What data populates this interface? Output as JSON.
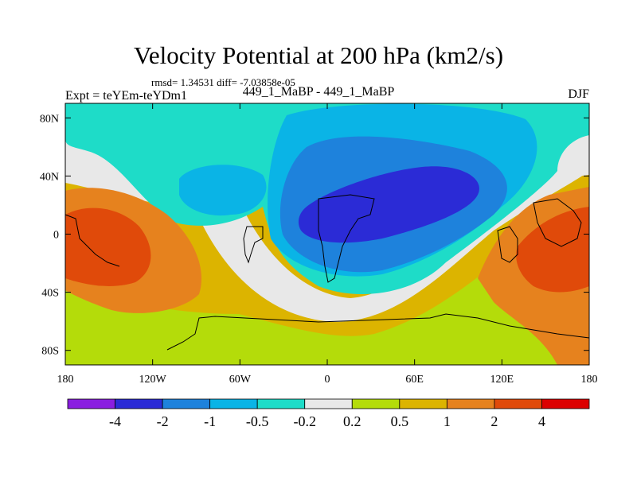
{
  "header": {
    "title": "Velocity Potential at 200 hPa (km2/s)",
    "stats": "rmsd= 1.34531  diff= -7.03858e-05",
    "left_label": "Expt = teYEm-teYDm1",
    "center_label": "449_1_MaBP - 449_1_MaBP",
    "right_label": "DJF"
  },
  "chart_data": {
    "type": "contour-map",
    "title": "Velocity Potential at 200 hPa (km2/s)",
    "subtitle": "449_1_MaBP - 449_1_MaBP",
    "season": "DJF",
    "xlim": [
      -180,
      180
    ],
    "ylim": [
      -90,
      90
    ],
    "x_ticks": [
      {
        "value": -180,
        "label": "180"
      },
      {
        "value": -120,
        "label": "120W"
      },
      {
        "value": -60,
        "label": "60W"
      },
      {
        "value": 0,
        "label": "0"
      },
      {
        "value": 60,
        "label": "60E"
      },
      {
        "value": 120,
        "label": "120E"
      },
      {
        "value": 180,
        "label": "180"
      }
    ],
    "y_ticks": [
      {
        "value": 80,
        "label": "80N"
      },
      {
        "value": 40,
        "label": "40N"
      },
      {
        "value": 0,
        "label": "0"
      },
      {
        "value": -40,
        "label": "40S"
      },
      {
        "value": -80,
        "label": "80S"
      }
    ],
    "levels": [
      "-4",
      "-2",
      "-1",
      "-0.5",
      "-0.2",
      "0.2",
      "0.5",
      "1",
      "2",
      "4"
    ],
    "colors": [
      "#8a1ee0",
      "#2b2bd6",
      "#1e82dc",
      "#0ab4e6",
      "#1edcc8",
      "#e8e8e8",
      "#b4dc0a",
      "#dcb400",
      "#e6821e",
      "#e04a0a",
      "#dc0000"
    ],
    "regions": [
      {
        "name": "background",
        "color": "#dcb400"
      },
      {
        "name": "north-white-band",
        "color": "#e8e8e8"
      },
      {
        "name": "north-teal",
        "color": "#1edcc8"
      },
      {
        "name": "light-blue-core",
        "color": "#0ab4e6"
      },
      {
        "name": "mid-blue-core",
        "color": "#1e82dc"
      },
      {
        "name": "dark-blue-min",
        "color": "#2b2bd6"
      },
      {
        "name": "west-pacific-lightblue",
        "color": "#0ab4e6"
      },
      {
        "name": "east-pacific-orange",
        "color": "#e6821e"
      },
      {
        "name": "east-pacific-red",
        "color": "#e04a0a"
      },
      {
        "name": "west-pacific-orange",
        "color": "#e6821e"
      },
      {
        "name": "west-pacific-red",
        "color": "#e04a0a"
      },
      {
        "name": "south-white-band",
        "color": "#e8e8e8"
      },
      {
        "name": "south-green-band",
        "color": "#b4dc0a"
      }
    ]
  }
}
